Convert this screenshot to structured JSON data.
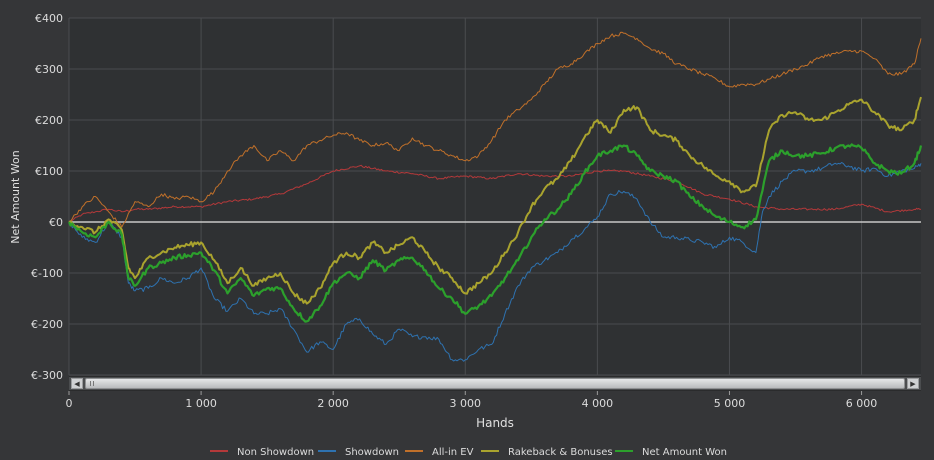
{
  "chart_data": {
    "type": "line",
    "xlabel": "Hands",
    "ylabel": "Net Amount Won",
    "xlim": [
      0,
      6450
    ],
    "ylim": [
      -300,
      400
    ],
    "x_ticks": [
      0,
      1000,
      2000,
      3000,
      4000,
      5000,
      6000
    ],
    "x_tick_labels": [
      "0",
      "1 000",
      "2 000",
      "3 000",
      "4 000",
      "5 000",
      "6 000"
    ],
    "y_ticks": [
      -300,
      -200,
      -100,
      0,
      100,
      200,
      300,
      400
    ],
    "y_tick_labels": [
      "€-300",
      "€-200",
      "€-100",
      "€0",
      "€100",
      "€200",
      "€300",
      "€400"
    ],
    "grid": true,
    "legend_position": "bottom",
    "series": [
      {
        "name": "Non Showdown",
        "color": "#b4393a",
        "x": [
          0,
          100,
          200,
          300,
          400,
          500,
          600,
          800,
          1000,
          1200,
          1400,
          1600,
          1800,
          2000,
          2200,
          2400,
          2600,
          2800,
          3000,
          3200,
          3400,
          3600,
          3800,
          4000,
          4200,
          4400,
          4600,
          4800,
          5000,
          5200,
          5400,
          5600,
          5800,
          6000,
          6200,
          6400,
          6450
        ],
        "y": [
          0,
          15,
          20,
          25,
          20,
          25,
          25,
          30,
          30,
          40,
          45,
          55,
          75,
          100,
          110,
          100,
          95,
          85,
          90,
          85,
          95,
          90,
          90,
          100,
          100,
          90,
          80,
          55,
          45,
          30,
          25,
          25,
          25,
          35,
          20,
          25,
          25
        ]
      },
      {
        "name": "Showdown",
        "color": "#2e72b0",
        "x": [
          0,
          100,
          200,
          300,
          400,
          450,
          500,
          600,
          700,
          800,
          900,
          1000,
          1100,
          1200,
          1300,
          1400,
          1500,
          1600,
          1700,
          1800,
          1900,
          2000,
          2100,
          2200,
          2300,
          2400,
          2500,
          2600,
          2700,
          2800,
          2900,
          3000,
          3100,
          3200,
          3300,
          3400,
          3500,
          3600,
          3700,
          3800,
          3900,
          4000,
          4100,
          4200,
          4300,
          4400,
          4500,
          4600,
          4700,
          4800,
          4900,
          5000,
          5100,
          5200,
          5250,
          5300,
          5400,
          5500,
          5600,
          5700,
          5800,
          5900,
          6000,
          6100,
          6200,
          6300,
          6400,
          6450
        ],
        "y": [
          0,
          -30,
          -40,
          0,
          -30,
          -120,
          -135,
          -130,
          -110,
          -120,
          -110,
          -90,
          -150,
          -175,
          -150,
          -180,
          -180,
          -170,
          -210,
          -255,
          -235,
          -250,
          -200,
          -190,
          -220,
          -240,
          -210,
          -225,
          -225,
          -230,
          -270,
          -270,
          -250,
          -240,
          -180,
          -125,
          -90,
          -75,
          -60,
          -35,
          -15,
          10,
          55,
          60,
          45,
          0,
          -30,
          -30,
          -35,
          -40,
          -50,
          -30,
          -40,
          -60,
          20,
          50,
          80,
          100,
          100,
          105,
          115,
          110,
          100,
          105,
          90,
          100,
          105,
          115
        ]
      },
      {
        "name": "All-in EV",
        "color": "#c0702a",
        "x": [
          0,
          100,
          200,
          300,
          400,
          500,
          600,
          700,
          800,
          900,
          1000,
          1100,
          1200,
          1300,
          1400,
          1500,
          1600,
          1700,
          1800,
          1900,
          2000,
          2100,
          2200,
          2300,
          2400,
          2500,
          2600,
          2700,
          2800,
          2900,
          3000,
          3100,
          3200,
          3300,
          3400,
          3500,
          3600,
          3700,
          3800,
          3900,
          4000,
          4100,
          4200,
          4300,
          4400,
          4500,
          4600,
          4700,
          4800,
          4900,
          5000,
          5100,
          5200,
          5300,
          5400,
          5500,
          5600,
          5700,
          5800,
          5900,
          6000,
          6100,
          6200,
          6300,
          6400,
          6450
        ],
        "y": [
          0,
          30,
          50,
          20,
          -10,
          40,
          30,
          55,
          45,
          50,
          40,
          60,
          100,
          130,
          150,
          120,
          140,
          120,
          150,
          160,
          170,
          175,
          160,
          150,
          155,
          140,
          165,
          150,
          140,
          130,
          120,
          130,
          160,
          200,
          220,
          240,
          270,
          300,
          310,
          330,
          350,
          365,
          370,
          360,
          340,
          330,
          310,
          300,
          290,
          280,
          265,
          270,
          270,
          280,
          290,
          300,
          310,
          325,
          330,
          335,
          335,
          320,
          290,
          290,
          310,
          360
        ]
      },
      {
        "name": "Rakeback & Bonuses",
        "color": "#a9a32e",
        "x": [
          0,
          100,
          200,
          300,
          400,
          450,
          500,
          600,
          700,
          800,
          900,
          1000,
          1100,
          1200,
          1300,
          1400,
          1500,
          1600,
          1700,
          1800,
          1900,
          2000,
          2100,
          2200,
          2300,
          2400,
          2500,
          2600,
          2700,
          2800,
          2900,
          3000,
          3100,
          3200,
          3300,
          3400,
          3500,
          3600,
          3700,
          3800,
          3900,
          4000,
          4100,
          4200,
          4300,
          4400,
          4500,
          4600,
          4700,
          4800,
          4900,
          5000,
          5100,
          5200,
          5300,
          5400,
          5500,
          5600,
          5700,
          5800,
          5900,
          6000,
          6100,
          6200,
          6300,
          6400,
          6450
        ],
        "y": [
          0,
          -10,
          -20,
          5,
          -15,
          -90,
          -110,
          -70,
          -60,
          -50,
          -45,
          -40,
          -75,
          -120,
          -90,
          -125,
          -110,
          -100,
          -140,
          -160,
          -130,
          -80,
          -60,
          -70,
          -40,
          -60,
          -45,
          -30,
          -60,
          -90,
          -110,
          -140,
          -120,
          -100,
          -60,
          -20,
          30,
          65,
          85,
          120,
          165,
          200,
          175,
          220,
          225,
          180,
          170,
          160,
          130,
          110,
          90,
          80,
          60,
          70,
          180,
          210,
          215,
          200,
          200,
          215,
          230,
          240,
          215,
          190,
          180,
          200,
          245
        ]
      },
      {
        "name": "Net Amount Won",
        "color": "#2ca02c",
        "x": [
          0,
          100,
          200,
          300,
          400,
          450,
          500,
          600,
          700,
          800,
          900,
          1000,
          1100,
          1200,
          1300,
          1400,
          1500,
          1600,
          1700,
          1800,
          1900,
          2000,
          2100,
          2200,
          2300,
          2400,
          2500,
          2600,
          2700,
          2800,
          2900,
          3000,
          3100,
          3200,
          3300,
          3400,
          3500,
          3600,
          3700,
          3800,
          3900,
          4000,
          4100,
          4200,
          4300,
          4400,
          4500,
          4600,
          4700,
          4800,
          4900,
          5000,
          5100,
          5200,
          5300,
          5400,
          5500,
          5600,
          5700,
          5800,
          5900,
          6000,
          6100,
          6200,
          6300,
          6400,
          6450
        ],
        "y": [
          0,
          -20,
          -30,
          0,
          -25,
          -110,
          -125,
          -90,
          -80,
          -70,
          -65,
          -60,
          -95,
          -140,
          -110,
          -145,
          -130,
          -130,
          -170,
          -195,
          -165,
          -120,
          -100,
          -110,
          -75,
          -95,
          -75,
          -70,
          -95,
          -130,
          -150,
          -180,
          -165,
          -145,
          -110,
          -75,
          -30,
          5,
          25,
          55,
          95,
          130,
          140,
          150,
          130,
          100,
          90,
          80,
          50,
          30,
          10,
          0,
          -10,
          5,
          120,
          140,
          130,
          130,
          135,
          145,
          150,
          145,
          115,
          100,
          95,
          115,
          150
        ]
      }
    ]
  }
}
